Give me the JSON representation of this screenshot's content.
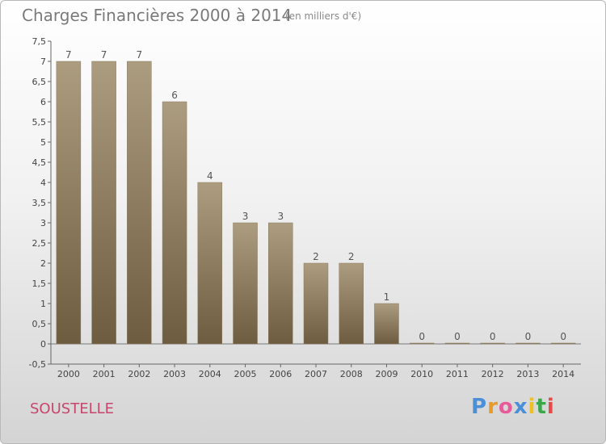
{
  "header": {
    "title": "Charges Financières 2000 à 2014",
    "subtitle": "(en milliers d'€)"
  },
  "footer": {
    "commune": "SOUSTELLE",
    "brand": {
      "letters": [
        "P",
        "r",
        "o",
        "x",
        "i",
        "t",
        "i"
      ],
      "colors": [
        "#4a8fd8",
        "#e89a2a",
        "#e85a9a",
        "#4a8fd8",
        "#f0c020",
        "#3aa84a",
        "#e84a4a"
      ]
    }
  },
  "chart_data": {
    "type": "bar",
    "categories": [
      "2000",
      "2001",
      "2002",
      "2003",
      "2004",
      "2005",
      "2006",
      "2007",
      "2008",
      "2009",
      "2010",
      "2011",
      "2012",
      "2013",
      "2014"
    ],
    "values": [
      7,
      7,
      7,
      6,
      4,
      3,
      3,
      2,
      2,
      1,
      0,
      0,
      0,
      0,
      0
    ],
    "data_labels": [
      "7",
      "7",
      "7",
      "6",
      "4",
      "3",
      "3",
      "2",
      "2",
      "1",
      "0",
      "0",
      "0",
      "0",
      "0"
    ],
    "title": "Charges Financières 2000 à 2014",
    "subtitle": "(en milliers d'€)",
    "ylim": [
      -0.5,
      7.5
    ],
    "yticks": [
      -0.5,
      0,
      0.5,
      1,
      1.5,
      2,
      2.5,
      3,
      3.5,
      4,
      4.5,
      5,
      5.5,
      6,
      6.5,
      7,
      7.5
    ],
    "ytick_labels": [
      "-0,5",
      "0",
      "0,5",
      "1",
      "1,5",
      "2",
      "2,5",
      "3",
      "3,5",
      "4",
      "4,5",
      "5",
      "5,5",
      "6",
      "6,5",
      "7",
      "7,5"
    ],
    "bar_color": "#9a8a6e",
    "grid": false
  }
}
